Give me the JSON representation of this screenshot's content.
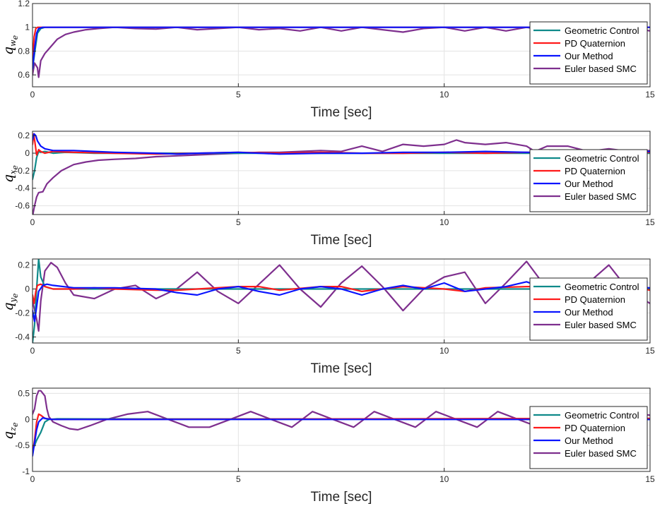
{
  "chart_data": [
    {
      "type": "line",
      "ylabel": "q",
      "ylabel_sub": "w",
      "ylabel_subsub": "e",
      "xlabel": "Time [sec]",
      "xlim": [
        0,
        15
      ],
      "ylim": [
        0.5,
        1.2
      ],
      "xticks": [
        0,
        5,
        10,
        15
      ],
      "xtick_labels": [
        "0",
        "5",
        "10",
        "15"
      ],
      "yticks": [
        0.6,
        0.8,
        1,
        1.2
      ],
      "ytick_labels": [
        "0.6",
        "0.8",
        "1",
        "1.2"
      ],
      "grid": true,
      "legend_position": "bottom-right",
      "series": [
        {
          "name": "Geometric Control",
          "color": "#0f8a8a",
          "x": [
            0,
            0.05,
            0.12,
            0.2,
            0.3,
            15
          ],
          "y": [
            0.65,
            0.78,
            0.95,
            0.99,
            1.0,
            1.0
          ]
        },
        {
          "name": "PD Quaternion",
          "color": "#ff1a1a",
          "x": [
            0,
            0.04,
            0.08,
            0.12,
            15
          ],
          "y": [
            0.72,
            0.92,
            0.99,
            1.0,
            1.0
          ]
        },
        {
          "name": "Our Method",
          "color": "#0a14ff",
          "x": [
            0,
            0.05,
            0.1,
            0.15,
            0.25,
            15
          ],
          "y": [
            0.65,
            0.82,
            0.95,
            0.99,
            1.0,
            1.0
          ]
        },
        {
          "name": "Euler based SMC",
          "color": "#7e2f8e",
          "x": [
            0,
            0.05,
            0.12,
            0.15,
            0.2,
            0.3,
            0.4,
            0.6,
            0.8,
            1.0,
            1.3,
            1.6,
            2.0,
            2.5,
            3.0,
            3.5,
            4.0,
            4.5,
            5.0,
            5.5,
            6.0,
            6.5,
            7.0,
            7.5,
            8.0,
            8.5,
            9.0,
            9.5,
            10.0,
            10.5,
            11.0,
            11.5,
            12.0,
            12.5,
            13.0,
            13.5,
            14.0,
            14.5,
            15.0
          ],
          "y": [
            0.6,
            0.7,
            0.66,
            0.58,
            0.72,
            0.78,
            0.82,
            0.9,
            0.94,
            0.96,
            0.98,
            0.99,
            1.0,
            0.99,
            0.985,
            1.0,
            0.98,
            0.99,
            1.0,
            0.98,
            0.99,
            0.97,
            1.0,
            0.97,
            1.0,
            0.98,
            0.96,
            0.99,
            1.0,
            0.97,
            1.0,
            0.97,
            1.0,
            0.97,
            0.96,
            1.0,
            0.96,
            1.0,
            0.97
          ]
        }
      ]
    },
    {
      "type": "line",
      "ylabel": "q",
      "ylabel_sub": "x",
      "ylabel_subsub": "e",
      "xlabel": "Time [sec]",
      "xlim": [
        0,
        15
      ],
      "ylim": [
        -0.7,
        0.25
      ],
      "xticks": [
        0,
        5,
        10,
        15
      ],
      "xtick_labels": [
        "0",
        "5",
        "10",
        "15"
      ],
      "yticks": [
        -0.6,
        -0.4,
        -0.2,
        0,
        0.2
      ],
      "ytick_labels": [
        "-0.6",
        "-0.4",
        "-0.2",
        "0",
        "0.2"
      ],
      "grid": true,
      "legend_position": "bottom-right",
      "series": [
        {
          "name": "Geometric Control",
          "color": "#0f8a8a",
          "x": [
            0,
            0.05,
            0.1,
            0.15,
            0.2,
            0.3,
            0.5,
            0.8,
            1.5,
            15
          ],
          "y": [
            -0.3,
            -0.2,
            -0.05,
            0.02,
            0.01,
            0.02,
            0.0,
            0.01,
            0.0,
            0.0
          ]
        },
        {
          "name": "PD Quaternion",
          "color": "#ff1a1a",
          "x": [
            0,
            0.03,
            0.06,
            0.1,
            0.15,
            0.2,
            0.3,
            0.5,
            1.0,
            2.0,
            3.0,
            4.0,
            5.0,
            6.0,
            7.0,
            8.0,
            9.0,
            10.0,
            11.0,
            12.0,
            13.0,
            14.0,
            15.0
          ],
          "y": [
            0.1,
            0.22,
            0.12,
            -0.02,
            0.04,
            0.02,
            0.0,
            0.02,
            0.01,
            0.0,
            -0.01,
            0.0,
            0.01,
            0.0,
            0.01,
            0.0,
            0.0,
            0.01,
            0.0,
            0.01,
            0.0,
            0.0,
            0.01
          ]
        },
        {
          "name": "Our Method",
          "color": "#0a14ff",
          "x": [
            0,
            0.04,
            0.08,
            0.12,
            0.2,
            0.3,
            0.5,
            0.8,
            1.0,
            1.5,
            2.0,
            3.0,
            3.5,
            4.0,
            5.0,
            6.0,
            7.0,
            8.0,
            9.0,
            10.0,
            11.0,
            12.0,
            13.0,
            14.0,
            14.5,
            15.0
          ],
          "y": [
            0.15,
            0.22,
            0.2,
            0.14,
            0.08,
            0.05,
            0.03,
            0.03,
            0.03,
            0.02,
            0.01,
            0.0,
            -0.01,
            0.0,
            0.01,
            -0.01,
            0.0,
            0.0,
            0.01,
            0.01,
            0.02,
            0.01,
            0.01,
            -0.01,
            0.02,
            0.02
          ]
        },
        {
          "name": "Euler based SMC",
          "color": "#7e2f8e",
          "x": [
            0,
            0.05,
            0.1,
            0.15,
            0.25,
            0.35,
            0.5,
            0.7,
            1.0,
            1.3,
            1.6,
            2.0,
            2.5,
            3.0,
            3.5,
            4.0,
            4.5,
            5.0,
            5.5,
            6.0,
            6.5,
            7.0,
            7.5,
            8.0,
            8.5,
            9.0,
            9.5,
            10.0,
            10.3,
            10.5,
            11.0,
            11.5,
            12.0,
            12.2,
            12.5,
            13.0,
            13.5,
            14.0,
            14.5,
            15.0
          ],
          "y": [
            -0.72,
            -0.6,
            -0.5,
            -0.45,
            -0.44,
            -0.35,
            -0.28,
            -0.2,
            -0.13,
            -0.1,
            -0.08,
            -0.07,
            -0.06,
            -0.04,
            -0.03,
            -0.02,
            -0.01,
            0.0,
            0.01,
            0.01,
            0.02,
            0.03,
            0.02,
            0.08,
            0.02,
            0.1,
            0.08,
            0.1,
            0.15,
            0.12,
            0.1,
            0.12,
            0.08,
            0.02,
            0.08,
            0.08,
            0.02,
            0.05,
            0.02,
            0.03
          ]
        }
      ]
    },
    {
      "type": "line",
      "ylabel": "q",
      "ylabel_sub": "y",
      "ylabel_subsub": "e",
      "xlabel": "Time [sec]",
      "xlim": [
        0,
        15
      ],
      "ylim": [
        -0.45,
        0.25
      ],
      "xticks": [
        0,
        5,
        10,
        15
      ],
      "xtick_labels": [
        "0",
        "5",
        "10",
        "15"
      ],
      "yticks": [
        -0.4,
        -0.2,
        0,
        0.2
      ],
      "ytick_labels": [
        "-0.4",
        "-0.2",
        "0",
        "0.2"
      ],
      "grid": true,
      "legend_position": "bottom-right",
      "series": [
        {
          "name": "Geometric Control",
          "color": "#0f8a8a",
          "x": [
            0,
            0.05,
            0.1,
            0.15,
            0.2,
            0.3,
            0.5,
            15
          ],
          "y": [
            -0.45,
            -0.3,
            0.0,
            0.25,
            0.1,
            0.02,
            0.0,
            0.0
          ]
        },
        {
          "name": "PD Quaternion",
          "color": "#ff1a1a",
          "x": [
            0,
            0.04,
            0.08,
            0.12,
            0.2,
            0.3,
            0.5,
            1.0,
            1.5,
            2.0,
            3.0,
            3.5,
            4.0,
            5.0,
            5.5,
            6.0,
            7.0,
            7.5,
            8.0,
            9.0,
            10.0,
            10.5,
            11.0,
            12.0,
            12.5,
            13.0,
            14.0,
            14.5,
            15.0
          ],
          "y": [
            -0.05,
            -0.12,
            -0.02,
            0.03,
            0.04,
            0.02,
            0.0,
            0.0,
            0.01,
            0.0,
            -0.01,
            -0.01,
            0.0,
            0.02,
            0.02,
            -0.01,
            0.02,
            0.02,
            -0.02,
            0.02,
            0.0,
            -0.02,
            0.01,
            0.02,
            0.02,
            -0.01,
            0.01,
            0.02,
            -0.01
          ]
        },
        {
          "name": "Our Method",
          "color": "#0a14ff",
          "x": [
            0,
            0.05,
            0.1,
            0.15,
            0.25,
            0.35,
            0.5,
            1.0,
            2.0,
            3.0,
            3.5,
            4.0,
            4.5,
            5.0,
            5.5,
            6.0,
            6.5,
            7.0,
            7.5,
            8.0,
            8.5,
            9.0,
            9.5,
            10.0,
            10.5,
            11.0,
            11.5,
            12.0,
            12.5,
            13.0,
            14.0,
            15.0
          ],
          "y": [
            -0.18,
            -0.27,
            -0.15,
            -0.02,
            0.03,
            0.04,
            0.03,
            0.01,
            0.01,
            0.0,
            -0.03,
            -0.05,
            0.0,
            0.02,
            -0.02,
            -0.05,
            0.0,
            0.02,
            0.0,
            -0.05,
            0.0,
            0.03,
            0.0,
            0.05,
            -0.02,
            0.0,
            0.02,
            0.06,
            0.0,
            -0.02,
            0.02,
            0.01
          ]
        },
        {
          "name": "Euler based SMC",
          "color": "#7e2f8e",
          "x": [
            0,
            0.1,
            0.15,
            0.2,
            0.3,
            0.45,
            0.6,
            0.8,
            1.0,
            1.5,
            2.0,
            2.5,
            3.0,
            3.5,
            4.0,
            4.5,
            5.0,
            5.5,
            6.0,
            6.5,
            7.0,
            7.5,
            8.0,
            8.5,
            9.0,
            9.5,
            10.0,
            10.5,
            11.0,
            11.5,
            12.0,
            12.5,
            13.0,
            13.5,
            14.0,
            14.5,
            15.0
          ],
          "y": [
            -0.1,
            -0.25,
            -0.35,
            -0.1,
            0.15,
            0.22,
            0.18,
            0.05,
            -0.05,
            -0.08,
            0.0,
            0.03,
            -0.08,
            0.0,
            0.14,
            -0.02,
            -0.12,
            0.04,
            0.2,
            0.0,
            -0.15,
            0.05,
            0.19,
            0.02,
            -0.18,
            0.0,
            0.1,
            0.14,
            -0.12,
            0.05,
            0.23,
            0.0,
            -0.05,
            0.05,
            0.2,
            -0.02,
            -0.12
          ]
        }
      ]
    },
    {
      "type": "line",
      "ylabel": "q",
      "ylabel_sub": "z",
      "ylabel_subsub": "e",
      "xlabel": "Time [sec]",
      "xlim": [
        0,
        15
      ],
      "ylim": [
        -1,
        0.6
      ],
      "xticks": [
        0,
        5,
        10,
        15
      ],
      "xtick_labels": [
        "0",
        "5",
        "10",
        "15"
      ],
      "yticks": [
        -1,
        -0.5,
        0,
        0.5
      ],
      "ytick_labels": [
        "-1",
        "-0.5",
        "0",
        "0.5"
      ],
      "grid": true,
      "legend_position": "bottom-right",
      "series": [
        {
          "name": "Geometric Control",
          "color": "#0f8a8a",
          "x": [
            0,
            0.1,
            0.2,
            0.25,
            0.3,
            0.4,
            0.6,
            15
          ],
          "y": [
            -0.6,
            -0.4,
            -0.25,
            -0.15,
            -0.05,
            0.0,
            0.01,
            0.0
          ]
        },
        {
          "name": "PD Quaternion",
          "color": "#ff1a1a",
          "x": [
            0,
            0.05,
            0.1,
            0.15,
            0.2,
            0.3,
            0.5,
            1.0,
            15
          ],
          "y": [
            -0.65,
            -0.4,
            -0.05,
            0.1,
            0.08,
            0.02,
            0.0,
            0.0,
            0.02
          ]
        },
        {
          "name": "Our Method",
          "color": "#0a14ff",
          "x": [
            0,
            0.05,
            0.1,
            0.15,
            0.25,
            0.35,
            0.5,
            1.0,
            15
          ],
          "y": [
            -0.7,
            -0.45,
            -0.2,
            -0.05,
            0.03,
            0.01,
            0.0,
            0.0,
            0.0
          ]
        },
        {
          "name": "Euler based SMC",
          "color": "#7e2f8e",
          "x": [
            0,
            0.05,
            0.1,
            0.15,
            0.2,
            0.3,
            0.35,
            0.4,
            0.5,
            0.7,
            0.9,
            1.1,
            1.4,
            1.8,
            2.3,
            2.8,
            3.3,
            3.8,
            4.3,
            4.8,
            5.3,
            5.8,
            6.3,
            6.8,
            7.3,
            7.8,
            8.3,
            8.8,
            9.3,
            9.8,
            10.3,
            10.8,
            11.3,
            11.8,
            12.3,
            12.8,
            13.3,
            13.8,
            14.3,
            14.8,
            15.0
          ],
          "y": [
            0.1,
            0.2,
            0.45,
            0.55,
            0.55,
            0.45,
            0.2,
            0.05,
            -0.05,
            -0.12,
            -0.18,
            -0.2,
            -0.12,
            0.0,
            0.1,
            0.15,
            0.0,
            -0.15,
            -0.15,
            0.0,
            0.15,
            0.0,
            -0.15,
            0.15,
            0.0,
            -0.15,
            0.15,
            0.0,
            -0.15,
            0.15,
            0.0,
            -0.15,
            0.15,
            0.0,
            -0.15,
            0.15,
            0.0,
            -0.15,
            0.15,
            0.1,
            0.08
          ]
        }
      ]
    }
  ]
}
